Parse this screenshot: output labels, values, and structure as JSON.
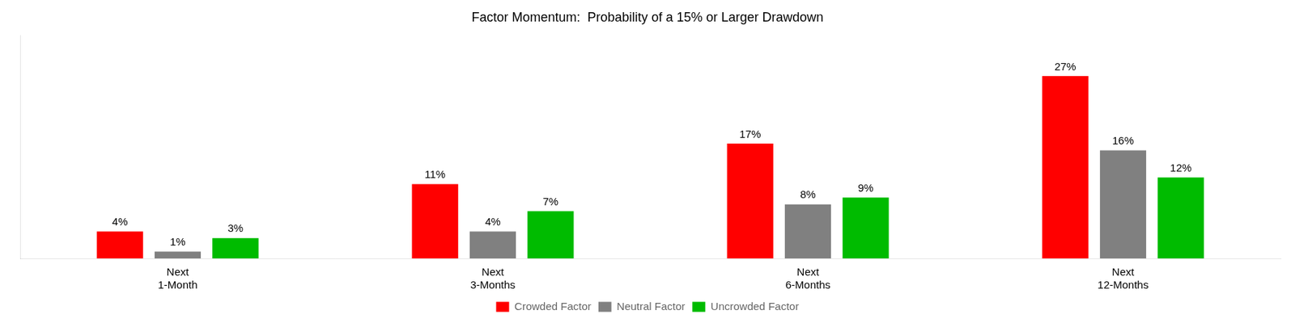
{
  "chart_data": {
    "type": "bar",
    "title": "Factor Momentum:  Probability of a 15% or Larger Drawdown",
    "categories": [
      "Next\n1-Month",
      "Next\n3-Months",
      "Next\n6-Months",
      "Next\n12-Months"
    ],
    "series": [
      {
        "name": "Crowded Factor",
        "color": "#ff0000",
        "values": [
          4,
          11,
          17,
          27
        ],
        "value_labels": [
          "4%",
          "11%",
          "17%",
          "27%"
        ]
      },
      {
        "name": "Neutral Factor",
        "color": "#808080",
        "values": [
          1,
          4,
          8,
          16
        ],
        "value_labels": [
          "1%",
          "4%",
          "8%",
          "16%"
        ]
      },
      {
        "name": "Uncrowded Factor",
        "color": "#00bb00",
        "values": [
          3,
          7,
          9,
          12
        ],
        "value_labels": [
          "3%",
          "7%",
          "9%",
          "12%"
        ]
      }
    ],
    "ylim": [
      0,
      33
    ],
    "grid": false,
    "legend": "bottom",
    "data_labels": true,
    "tick_labels": "x"
  }
}
